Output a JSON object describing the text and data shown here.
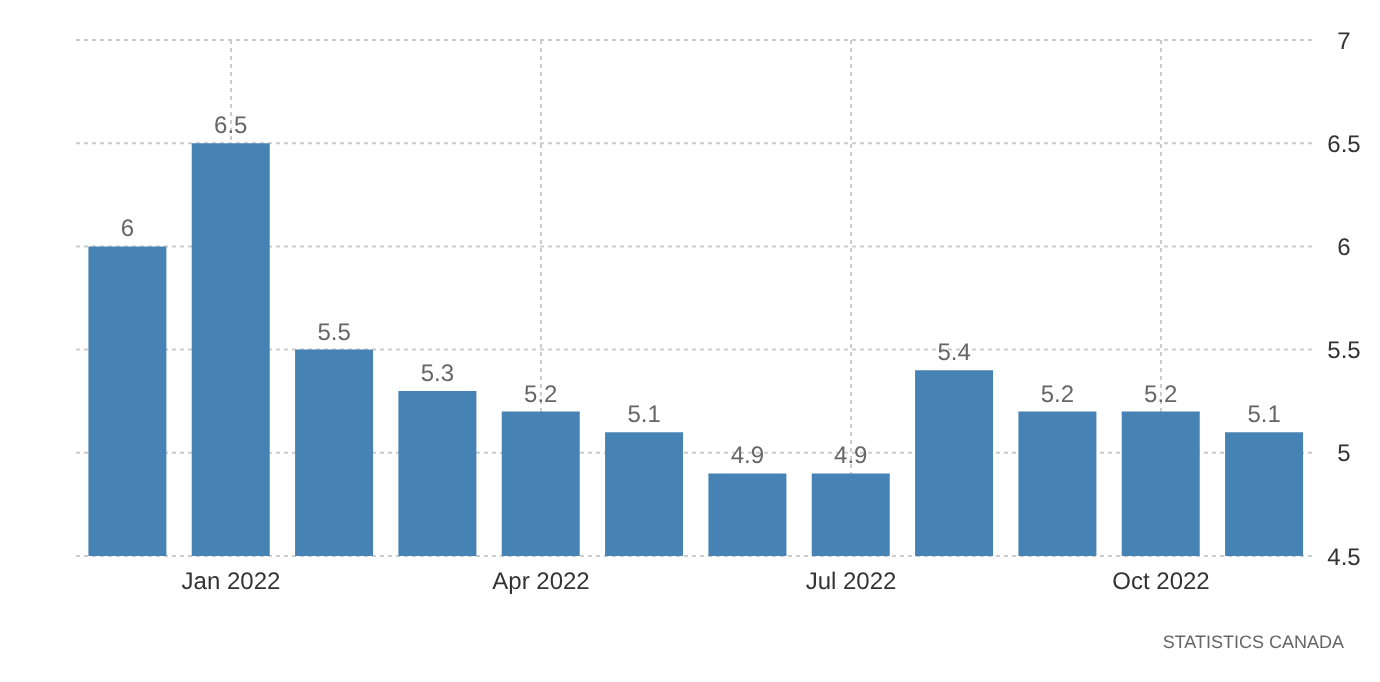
{
  "chart_data": {
    "type": "bar",
    "categories": [
      null,
      "Jan 2022",
      null,
      null,
      "Apr 2022",
      null,
      null,
      "Jul 2022",
      null,
      null,
      "Oct 2022",
      null
    ],
    "values": [
      6,
      6.5,
      5.5,
      5.3,
      5.2,
      5.1,
      4.9,
      4.9,
      5.4,
      5.2,
      5.2,
      5.1
    ],
    "color": "#4682b4",
    "ylim": [
      4.5,
      7
    ],
    "yticks": [
      4.5,
      5,
      5.5,
      6,
      6.5,
      7
    ],
    "grid": true,
    "data_labels": true,
    "annotations": [
      "STATISTICS CANADA"
    ]
  }
}
